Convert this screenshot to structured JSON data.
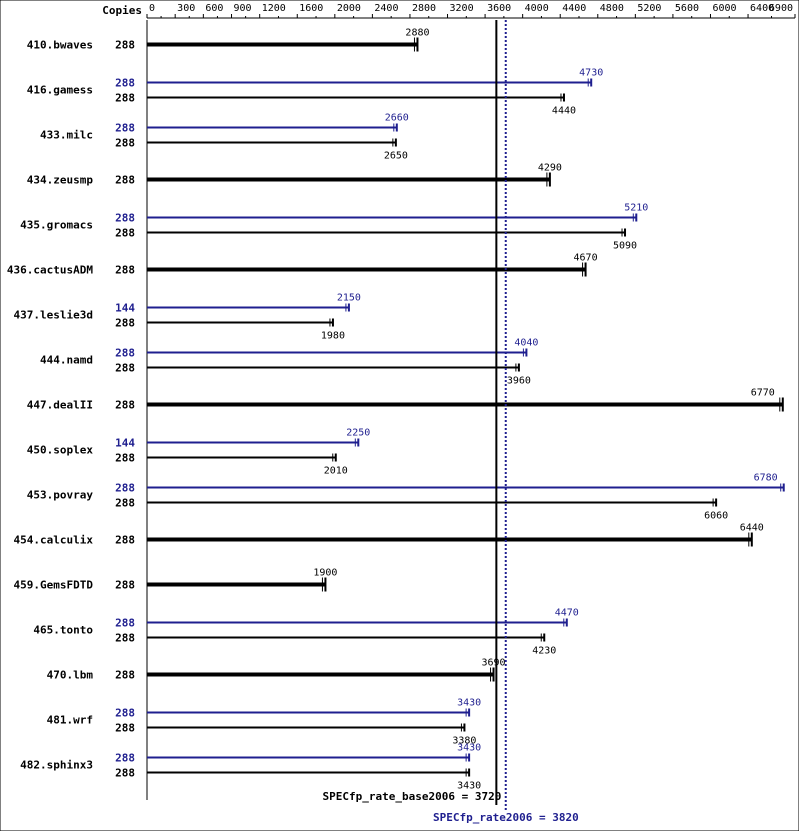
{
  "chart_data": {
    "type": "bar",
    "orientation": "horizontal",
    "copies_header": "Copies",
    "xlim": [
      0,
      6900
    ],
    "x_ticks": [
      0,
      300,
      600,
      900,
      1200,
      1600,
      2000,
      2400,
      2800,
      3200,
      3600,
      4000,
      4400,
      4800,
      5200,
      5600,
      6000,
      6400,
      6900
    ],
    "x_tick_labels": [
      "0",
      "300",
      "600",
      "900",
      "1200",
      "1600",
      "2000",
      "2400",
      "2800",
      "3200",
      "3600",
      "4000",
      "4400",
      "4800",
      "5200",
      "5600",
      "6000",
      "6400",
      "6900"
    ],
    "colors": {
      "base": "#000000",
      "peak": "#1f1f8f"
    },
    "benchmarks": [
      {
        "name": "410.bwaves",
        "base_copies": "288",
        "base": 2880,
        "base_label": "2880"
      },
      {
        "name": "416.gamess",
        "peak_copies": "288",
        "peak": 4730,
        "peak_label": "4730",
        "base_copies": "288",
        "base": 4440,
        "base_label": "4440"
      },
      {
        "name": "433.milc",
        "peak_copies": "288",
        "peak": 2660,
        "peak_label": "2660",
        "base_copies": "288",
        "base": 2650,
        "base_label": "2650"
      },
      {
        "name": "434.zeusmp",
        "base_copies": "288",
        "base": 4290,
        "base_label": "4290"
      },
      {
        "name": "435.gromacs",
        "peak_copies": "288",
        "peak": 5210,
        "peak_label": "5210",
        "base_copies": "288",
        "base": 5090,
        "base_label": "5090"
      },
      {
        "name": "436.cactusADM",
        "base_copies": "288",
        "base": 4670,
        "base_label": "4670"
      },
      {
        "name": "437.leslie3d",
        "peak_copies": "144",
        "peak": 2150,
        "peak_label": "2150",
        "base_copies": "288",
        "base": 1980,
        "base_label": "1980"
      },
      {
        "name": "444.namd",
        "peak_copies": "288",
        "peak": 4040,
        "peak_label": "4040",
        "base_copies": "288",
        "base": 3960,
        "base_label": "3960"
      },
      {
        "name": "447.dealII",
        "base_copies": "288",
        "base": 6770,
        "base_label": "6770"
      },
      {
        "name": "450.soplex",
        "peak_copies": "144",
        "peak": 2250,
        "peak_label": "2250",
        "base_copies": "288",
        "base": 2010,
        "base_label": "2010"
      },
      {
        "name": "453.povray",
        "peak_copies": "288",
        "peak": 6780,
        "peak_label": "6780",
        "base_copies": "288",
        "base": 6060,
        "base_label": "6060"
      },
      {
        "name": "454.calculix",
        "base_copies": "288",
        "base": 6440,
        "base_label": "6440"
      },
      {
        "name": "459.GemsFDTD",
        "base_copies": "288",
        "base": 1900,
        "base_label": "1900"
      },
      {
        "name": "465.tonto",
        "peak_copies": "288",
        "peak": 4470,
        "peak_label": "4470",
        "base_copies": "288",
        "base": 4230,
        "base_label": "4230"
      },
      {
        "name": "470.lbm",
        "base_copies": "288",
        "base": 3690,
        "base_label": "3690"
      },
      {
        "name": "481.wrf",
        "peak_copies": "288",
        "peak": 3430,
        "peak_label": "3430",
        "base_copies": "288",
        "base": 3380,
        "base_label": "3380"
      },
      {
        "name": "482.sphinx3",
        "peak_copies": "288",
        "peak": 3430,
        "peak_label": "3430",
        "base_copies": "288",
        "base": 3430,
        "base_label": "3430"
      }
    ],
    "summary_base": {
      "label": "SPECfp_rate_base2006 = 3720",
      "value": 3720
    },
    "summary_peak": {
      "label": "SPECfp_rate2006 = 3820",
      "value": 3820
    }
  }
}
